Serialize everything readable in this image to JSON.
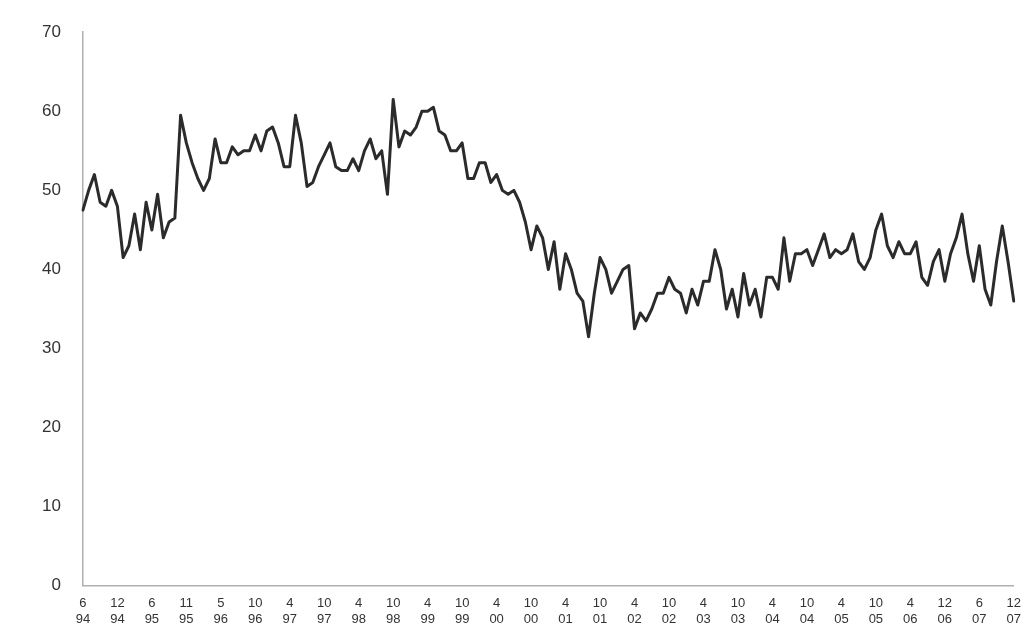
{
  "chart_data": {
    "type": "line",
    "categories": [
      "6\n94",
      null,
      null,
      null,
      null,
      null,
      "12\n94",
      null,
      null,
      null,
      null,
      null,
      "6\n95",
      null,
      null,
      null,
      null,
      null,
      "11\n95",
      null,
      null,
      null,
      null,
      null,
      "5\n96",
      null,
      null,
      null,
      null,
      null,
      "10\n96",
      null,
      null,
      null,
      null,
      null,
      "4\n97",
      null,
      null,
      null,
      null,
      null,
      "10\n97",
      null,
      null,
      null,
      null,
      null,
      "4\n98",
      null,
      null,
      null,
      null,
      null,
      "10\n98",
      null,
      null,
      null,
      null,
      null,
      "4\n99",
      null,
      null,
      null,
      null,
      null,
      "10\n99",
      null,
      null,
      null,
      null,
      null,
      "4\n00",
      null,
      null,
      null,
      null,
      null,
      "10\n00",
      null,
      null,
      null,
      null,
      null,
      "4\n01",
      null,
      null,
      null,
      null,
      null,
      "10\n01",
      null,
      null,
      null,
      null,
      null,
      "4\n02",
      null,
      null,
      null,
      null,
      null,
      "10\n02",
      null,
      null,
      null,
      null,
      null,
      "4\n03",
      null,
      null,
      null,
      null,
      null,
      "10\n03",
      null,
      null,
      null,
      null,
      null,
      "4\n04",
      null,
      null,
      null,
      null,
      null,
      "10\n04",
      null,
      null,
      null,
      null,
      null,
      "4\n05",
      null,
      null,
      null,
      null,
      null,
      "10\n05",
      null,
      null,
      null,
      null,
      null,
      "4\n06",
      null,
      null,
      null,
      null,
      null,
      "12\n06",
      null,
      null,
      null,
      null,
      null,
      "6\n07",
      null,
      null,
      null,
      null,
      null,
      "12\n07"
    ],
    "series": [
      {
        "color": "#2b2b2b",
        "values": [
          47.5,
          50,
          52,
          48.5,
          48,
          50,
          48,
          41.5,
          43,
          47,
          42.5,
          48.5,
          45,
          49.5,
          44,
          46,
          46.5,
          59.5,
          56,
          53.5,
          51.5,
          50,
          51.5,
          56.5,
          53.5,
          53.5,
          55.5,
          54.5,
          55,
          55,
          57,
          55,
          57.5,
          58,
          56,
          53,
          53,
          59.5,
          56,
          50.5,
          51,
          53,
          54.5,
          56,
          53,
          52.5,
          52.5,
          54,
          52.5,
          55,
          56.5,
          54,
          55,
          49.5,
          61.5,
          55.5,
          57.5,
          57,
          58,
          60,
          60,
          60.5,
          57.5,
          57,
          55,
          55,
          56,
          51.5,
          51.5,
          53.5,
          53.5,
          51,
          52,
          50,
          49.5,
          50,
          48.5,
          46,
          42.5,
          45.5,
          44,
          40,
          43.5,
          37.5,
          42,
          40,
          37,
          36,
          31.5,
          37,
          41.5,
          40,
          37,
          38.5,
          40,
          40.5,
          32.5,
          34.5,
          33.5,
          35,
          37,
          37,
          39,
          37.5,
          37,
          34.5,
          37.5,
          35.5,
          38.5,
          38.5,
          42.5,
          40,
          35,
          37.5,
          34,
          39.5,
          35.5,
          37.5,
          34,
          39,
          39,
          37.5,
          44,
          38.5,
          42,
          42,
          42.5,
          40.5,
          42.5,
          44.5,
          41.5,
          42.5,
          42,
          42.5,
          44.5,
          41,
          40,
          41.5,
          45,
          47,
          43,
          41.5,
          43.5,
          42,
          42,
          43.5,
          39,
          38,
          41,
          42.5,
          38.5,
          42,
          44,
          47,
          42,
          38.5,
          43,
          37.5,
          35.5,
          41,
          45.5,
          41,
          36
        ]
      }
    ],
    "ylim": [
      0,
      70
    ],
    "yticks": [
      0,
      10,
      20,
      30,
      40,
      50,
      60,
      70
    ],
    "grid": false,
    "legend": false,
    "marker": "none",
    "line_style": "solid"
  }
}
